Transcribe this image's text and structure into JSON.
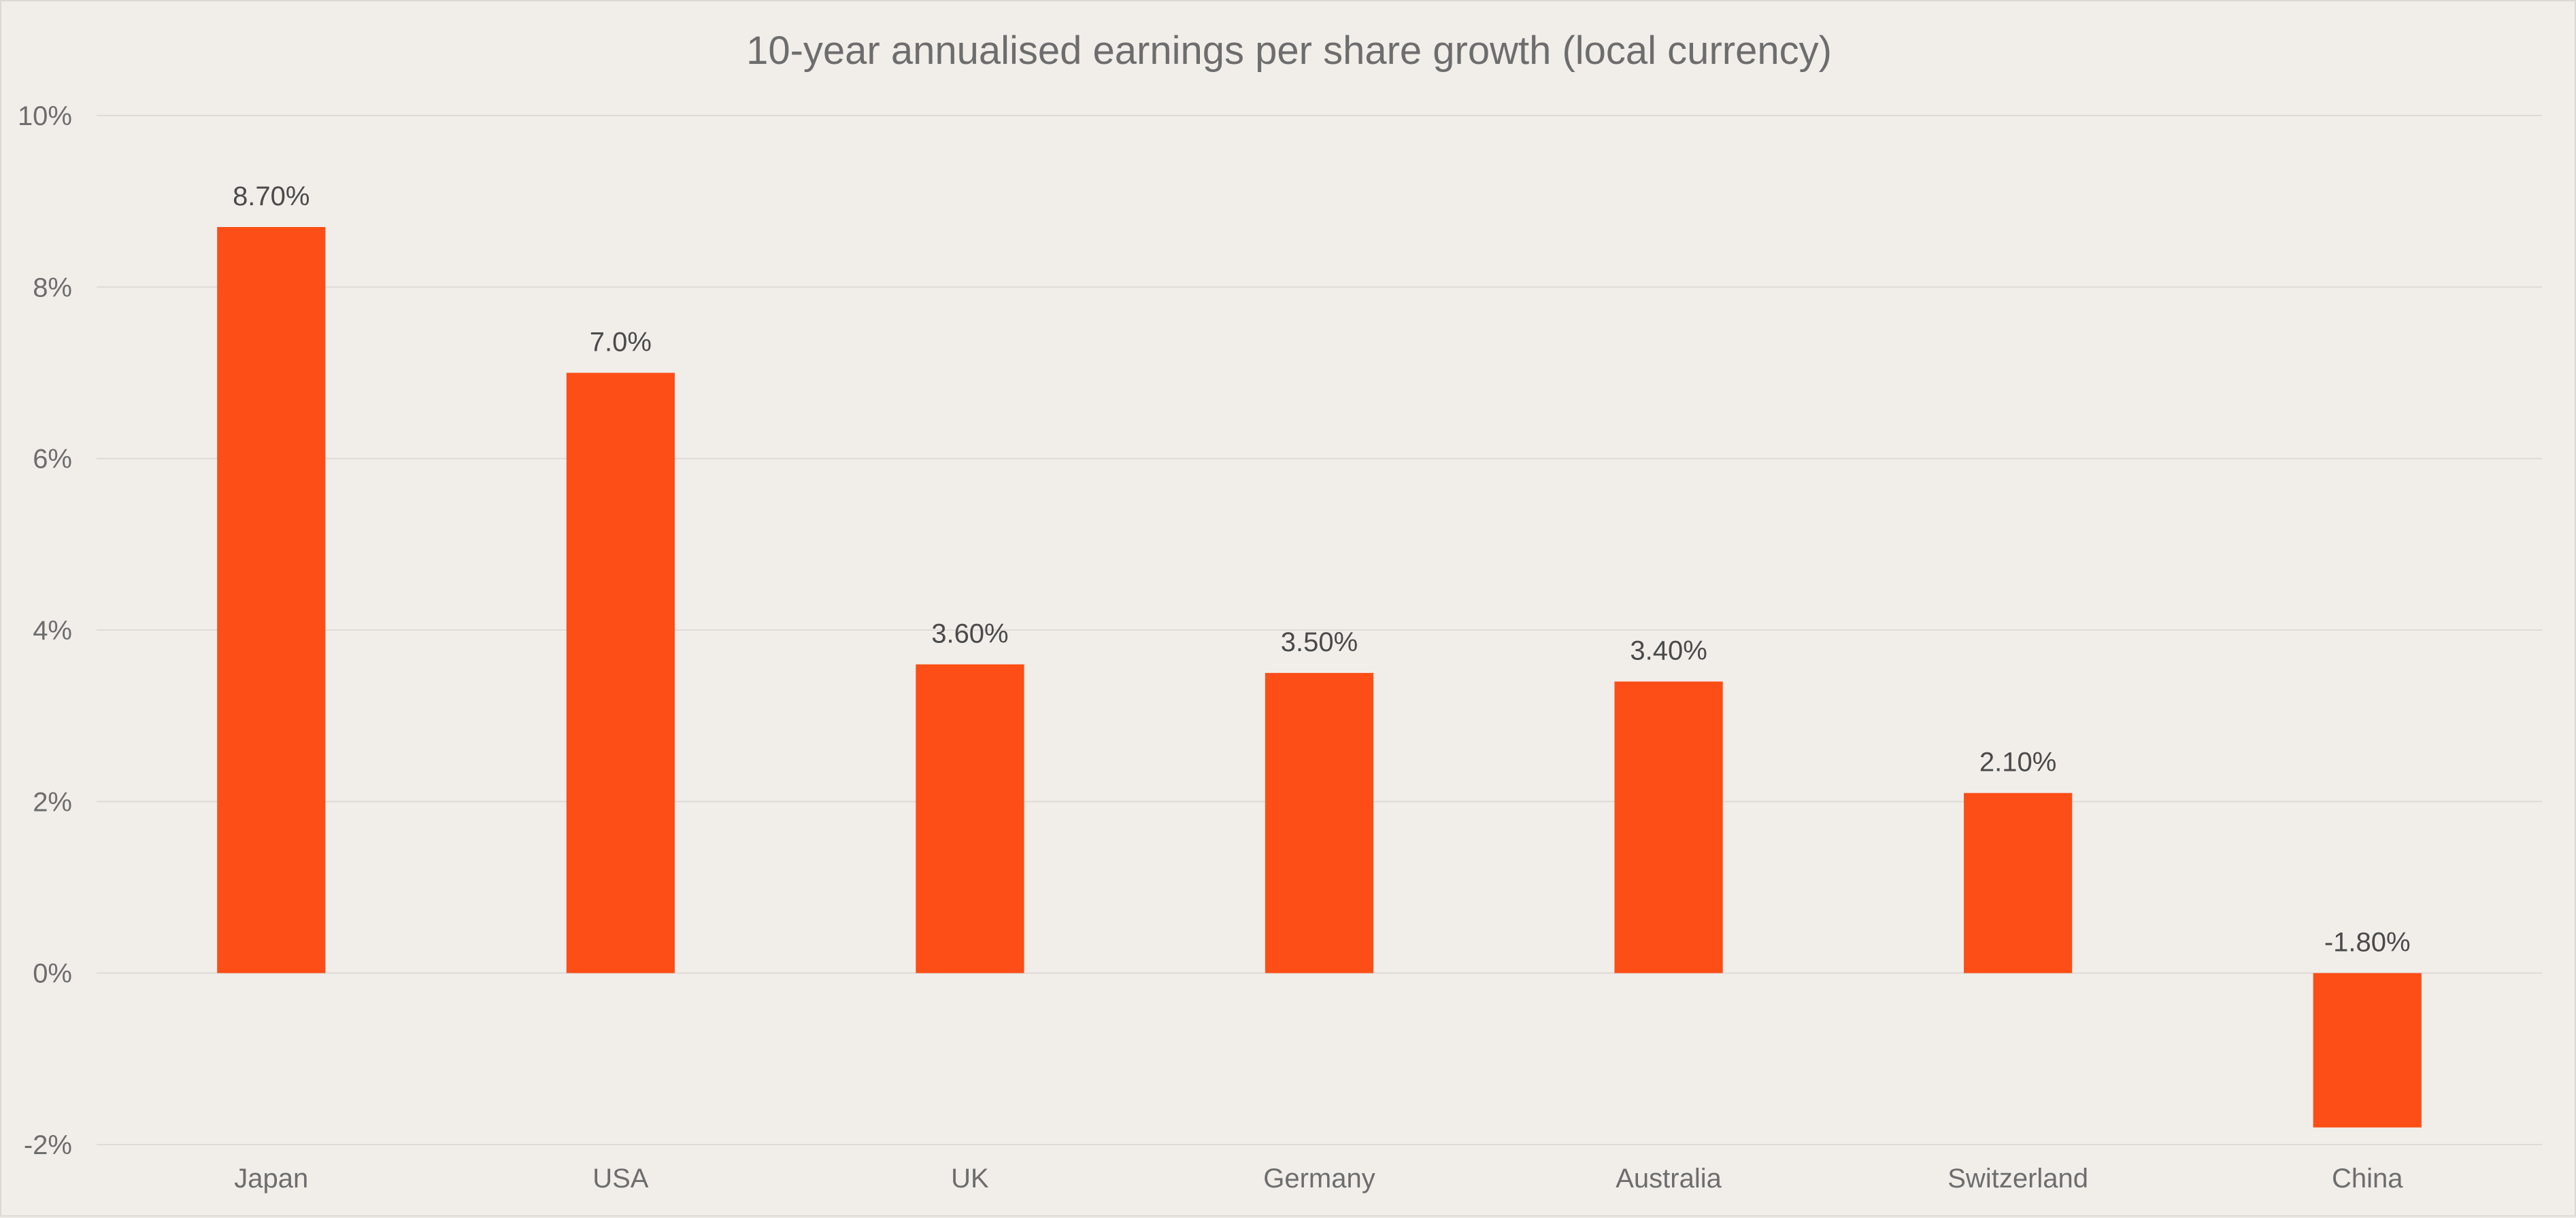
{
  "chart_data": {
    "type": "bar",
    "title": "10-year annualised earnings per share growth (local currency)",
    "xlabel": "",
    "ylabel": "",
    "categories": [
      "Japan",
      "USA",
      "UK",
      "Germany",
      "Australia",
      "Switzerland",
      "China"
    ],
    "values": [
      8.7,
      7.0,
      3.6,
      3.5,
      3.4,
      2.1,
      -1.8
    ],
    "value_labels": [
      "8.70%",
      "7.0%",
      "3.60%",
      "3.50%",
      "3.40%",
      "2.10%",
      "-1.80%"
    ],
    "ylim": [
      -2,
      10
    ],
    "yticks": [
      -2,
      0,
      2,
      4,
      6,
      8,
      10
    ],
    "ytick_labels": [
      "-2%",
      "0%",
      "2%",
      "4%",
      "6%",
      "8%",
      "10%"
    ],
    "grid": true,
    "legend": "none",
    "colors": {
      "bar": "#fc4e16",
      "background": "#f1eeea",
      "grid": "#dedad5",
      "text": "#6d6d6d"
    }
  }
}
